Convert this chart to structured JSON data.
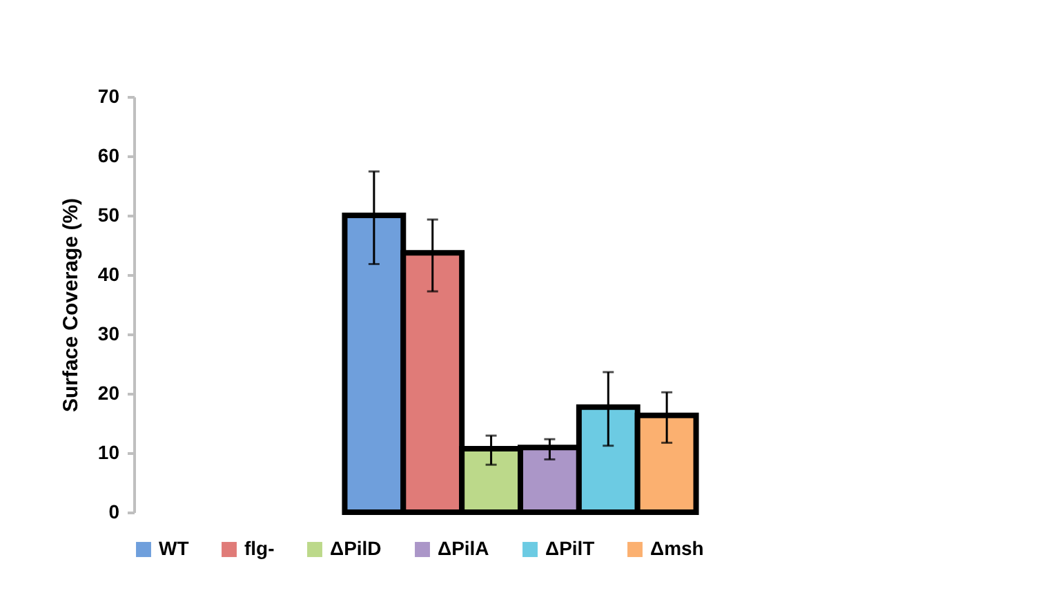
{
  "chart_data": {
    "type": "bar",
    "ylabel": "Surface Coverage (%)",
    "categories": [
      null
    ],
    "series": [
      {
        "name": "WT",
        "color": "#6f9fdc",
        "values": [
          50
        ],
        "errors": [
          [
            41.8,
            57.4
          ]
        ]
      },
      {
        "name": "flg-",
        "color": "#e07b78",
        "values": [
          43.7
        ],
        "errors": [
          [
            37.2,
            49.3
          ]
        ]
      },
      {
        "name": "ΔPilD",
        "color": "#bcd98a",
        "values": [
          10.7
        ],
        "errors": [
          [
            8.0,
            12.9
          ]
        ]
      },
      {
        "name": "ΔPilA",
        "color": "#ab96c8",
        "values": [
          10.9
        ],
        "errors": [
          [
            8.9,
            12.3
          ]
        ]
      },
      {
        "name": "ΔPilT",
        "color": "#6ccbe3",
        "values": [
          17.7
        ],
        "errors": [
          [
            11.2,
            23.6
          ]
        ]
      },
      {
        "name": "Δmsh",
        "color": "#fbb070",
        "values": [
          16.3
        ],
        "errors": [
          [
            11.7,
            20.2
          ]
        ]
      }
    ],
    "ylim": [
      0,
      70
    ],
    "yticks": [
      0,
      10,
      20,
      30,
      40,
      50,
      60,
      70
    ],
    "grid": false,
    "legend": "bottom"
  }
}
